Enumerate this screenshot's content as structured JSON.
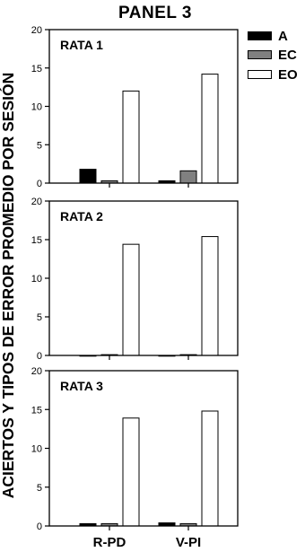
{
  "chart_data": {
    "type": "bar",
    "title": "PANEL 3",
    "ylabel": "ACIERTOS Y TIPOS DE ERROR PROMEDIO POR SESIÓN",
    "categories": [
      "R-PD",
      "V-PI"
    ],
    "ylim": [
      0,
      20
    ],
    "yticks": [
      0,
      5,
      10,
      15,
      20
    ],
    "grid": false,
    "legend_position": "top-right",
    "series_meta": [
      {
        "name": "A",
        "color": "#000000"
      },
      {
        "name": "EC",
        "color": "#808080"
      },
      {
        "name": "EO",
        "color": "#ffffff"
      }
    ],
    "panels": [
      {
        "label": "RATA 1",
        "series": [
          {
            "name": "A",
            "values": [
              1.8,
              0.3
            ]
          },
          {
            "name": "EC",
            "values": [
              0.3,
              1.6
            ]
          },
          {
            "name": "EO",
            "values": [
              12.0,
              14.2
            ]
          }
        ]
      },
      {
        "label": "RATA 2",
        "series": [
          {
            "name": "A",
            "values": [
              0.0,
              0.0
            ]
          },
          {
            "name": "EC",
            "values": [
              0.1,
              0.1
            ]
          },
          {
            "name": "EO",
            "values": [
              14.4,
              15.4
            ]
          }
        ]
      },
      {
        "label": "RATA 3",
        "series": [
          {
            "name": "A",
            "values": [
              0.3,
              0.4
            ]
          },
          {
            "name": "EC",
            "values": [
              0.3,
              0.3
            ]
          },
          {
            "name": "EO",
            "values": [
              13.9,
              14.8
            ]
          }
        ]
      }
    ]
  }
}
